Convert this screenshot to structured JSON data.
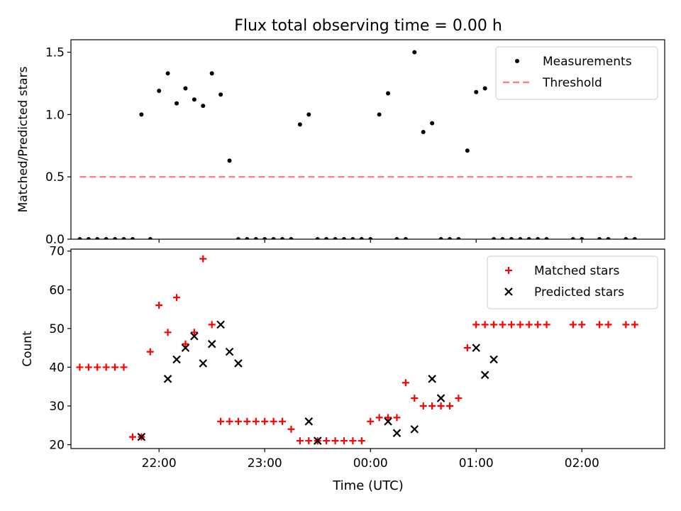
{
  "title": "Flux total observing time = 0.00 h",
  "xlabel": "Time (UTC)",
  "chart_data": [
    {
      "type": "scatter",
      "title": "Flux total observing time = 0.00 h",
      "xlabel": "",
      "ylabel": "Matched/Predicted stars",
      "xlim": [
        "21:10",
        "02:47"
      ],
      "ylim": [
        0,
        1.6
      ],
      "yticks": [
        0.0,
        0.5,
        1.0,
        1.5
      ],
      "ytick_labels": [
        "0.0",
        "0.5",
        "1.0",
        "1.5"
      ],
      "grid": false,
      "legend": "top-right",
      "series": [
        {
          "name": "Measurements",
          "kind": "scatter",
          "color": "#000000",
          "marker": "dot",
          "x": [
            "21:25",
            "21:30",
            "21:35",
            "21:40",
            "21:45",
            "21:50",
            "21:55",
            "22:00",
            "22:05",
            "22:10",
            "22:15",
            "22:20",
            "22:25",
            "22:30",
            "22:35",
            "22:40",
            "22:45",
            "22:50",
            "22:55",
            "23:00",
            "23:05",
            "23:10",
            "23:15",
            "23:20",
            "23:25",
            "23:30",
            "23:35",
            "23:40",
            "23:45",
            "23:50",
            "23:55",
            "00:00",
            "00:05",
            "00:10",
            "00:15",
            "00:20",
            "00:25",
            "00:30",
            "00:35",
            "00:40",
            "00:45",
            "00:50",
            "00:55",
            "01:00",
            "01:05",
            "01:10",
            "01:15",
            "01:20",
            "01:25",
            "01:30",
            "01:35",
            "01:40",
            "01:55",
            "02:00",
            "02:10",
            "02:15",
            "02:25",
            "02:30",
            "21:20",
            "21:15"
          ],
          "y": [
            0,
            0,
            0,
            0,
            0,
            1.0,
            0,
            1.19,
            1.33,
            1.09,
            1.21,
            1.12,
            1.07,
            1.33,
            1.16,
            0.63,
            0,
            0,
            0,
            0,
            0,
            0,
            0,
            0.92,
            1.0,
            0,
            0,
            0,
            0,
            0,
            0,
            0,
            1.0,
            1.17,
            0,
            0,
            1.5,
            0.86,
            0.93,
            0,
            0,
            0,
            0.71,
            1.18,
            1.21,
            0,
            0,
            0,
            0,
            0,
            0,
            0,
            0,
            0,
            0,
            0,
            0,
            0,
            0,
            0
          ]
        },
        {
          "name": "Threshold",
          "kind": "line",
          "dash": true,
          "color": "#ff8080",
          "x": [
            "21:15",
            "02:30"
          ],
          "y": [
            0.5,
            0.5
          ]
        }
      ]
    },
    {
      "type": "scatter",
      "xlabel": "Time (UTC)",
      "ylabel": "Count",
      "xlim": [
        "21:10",
        "02:47"
      ],
      "ylim": [
        19,
        70.5
      ],
      "yticks": [
        20,
        30,
        40,
        50,
        60,
        70
      ],
      "ytick_labels": [
        "20",
        "30",
        "40",
        "50",
        "60",
        "70"
      ],
      "xticks": [
        "22:00",
        "23:00",
        "00:00",
        "01:00",
        "02:00"
      ],
      "xtick_labels": [
        "22:00",
        "23:00",
        "00:00",
        "01:00",
        "02:00"
      ],
      "grid": false,
      "legend": "top-right",
      "series": [
        {
          "name": "Matched stars",
          "kind": "scatter",
          "color": "#ff0000",
          "marker": "plus",
          "x": [
            "21:15",
            "21:20",
            "21:25",
            "21:30",
            "21:35",
            "21:40",
            "21:45",
            "21:50",
            "21:55",
            "22:00",
            "22:05",
            "22:10",
            "22:15",
            "22:20",
            "22:25",
            "22:30",
            "22:35",
            "22:40",
            "22:45",
            "22:50",
            "22:55",
            "23:00",
            "23:05",
            "23:10",
            "23:15",
            "23:20",
            "23:25",
            "23:30",
            "23:35",
            "23:40",
            "23:45",
            "23:50",
            "23:55",
            "00:00",
            "00:05",
            "00:10",
            "00:15",
            "00:20",
            "00:25",
            "00:30",
            "00:35",
            "00:40",
            "00:45",
            "00:50",
            "00:55",
            "01:00",
            "01:05",
            "01:10",
            "01:15",
            "01:20",
            "01:25",
            "01:30",
            "01:35",
            "01:40",
            "01:55",
            "02:00",
            "02:10",
            "02:15",
            "02:25",
            "02:30"
          ],
          "y": [
            40,
            40,
            40,
            40,
            40,
            40,
            22,
            22,
            44,
            56,
            49,
            58,
            46,
            49,
            68,
            51,
            26,
            26,
            26,
            26,
            26,
            26,
            26,
            26,
            24,
            21,
            21,
            21,
            21,
            21,
            21,
            21,
            21,
            26,
            27,
            27,
            27,
            36,
            32,
            30,
            30,
            30,
            30,
            32,
            45,
            51,
            51,
            51,
            51,
            51,
            51,
            51,
            51,
            51,
            51,
            51,
            51,
            51,
            51,
            51
          ]
        },
        {
          "name": "Predicted stars",
          "kind": "scatter",
          "color": "#000000",
          "marker": "x",
          "x": [
            "21:50",
            "22:05",
            "22:10",
            "22:15",
            "22:20",
            "22:25",
            "22:30",
            "22:35",
            "22:40",
            "22:45",
            "23:25",
            "23:30",
            "00:10",
            "00:15",
            "00:25",
            "00:35",
            "00:40",
            "01:00",
            "01:05",
            "01:10"
          ],
          "y": [
            22,
            37,
            42,
            45,
            48,
            41,
            46,
            51,
            44,
            41,
            26,
            21,
            26,
            23,
            24,
            37,
            32,
            45,
            38,
            42
          ]
        }
      ]
    }
  ]
}
